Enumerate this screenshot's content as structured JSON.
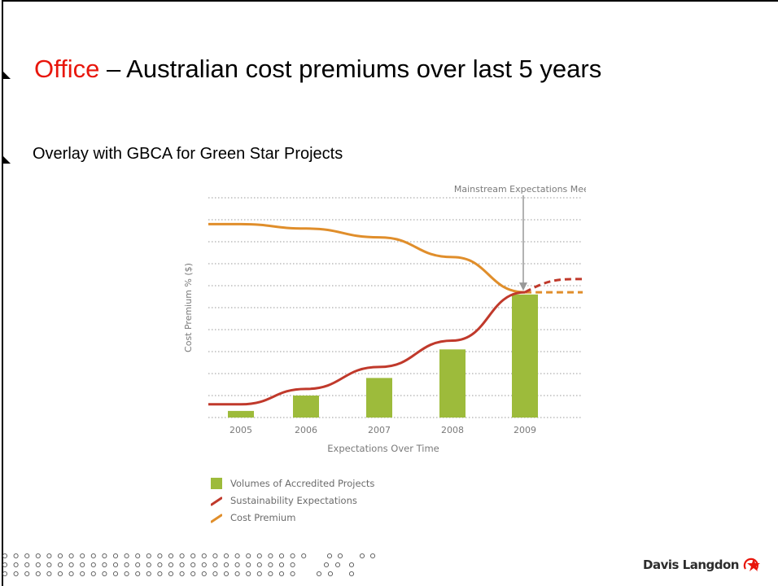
{
  "slide": {
    "title_highlight": "Office",
    "title_rest": " – Australian cost premiums over last 5 years",
    "subtitle": "Overlay with GBCA for Green Star Projects"
  },
  "chart_data": {
    "type": "bar",
    "categories": [
      "2005",
      "2006",
      "2007",
      "2008",
      "2009"
    ],
    "xlabel": "Expectations Over Time",
    "ylabel": "Cost Premium % ($)",
    "annotation": "Mainstream Expectations Meet",
    "grid": true,
    "gridlines": 10,
    "ylim": [
      0,
      10
    ],
    "series": [
      {
        "name": "Volumes of Accredited Projects",
        "kind": "bar",
        "color": "#9dbb3b",
        "values": [
          0.3,
          1.0,
          1.8,
          3.1,
          5.6
        ]
      },
      {
        "name": "Sustainability Expectations",
        "kind": "line",
        "color": "#c0392b",
        "values": [
          0.6,
          1.3,
          2.3,
          3.5,
          5.7
        ],
        "projected": [
          5.7,
          6.3
        ]
      },
      {
        "name": "Cost Premium",
        "kind": "line",
        "color": "#e08e2b",
        "values": [
          8.8,
          8.6,
          8.2,
          7.3,
          5.7
        ],
        "projected": [
          5.7,
          5.7
        ]
      }
    ]
  },
  "legend": [
    {
      "label": "Volumes of Accredited Projects",
      "color": "#9dbb3b",
      "kind": "bar"
    },
    {
      "label": "Sustainability Expectations",
      "color": "#c0392b",
      "kind": "line"
    },
    {
      "label": "Cost Premium",
      "color": "#e08e2b",
      "kind": "line"
    }
  ],
  "footer": {
    "logo_text": "Davis Langdon"
  }
}
